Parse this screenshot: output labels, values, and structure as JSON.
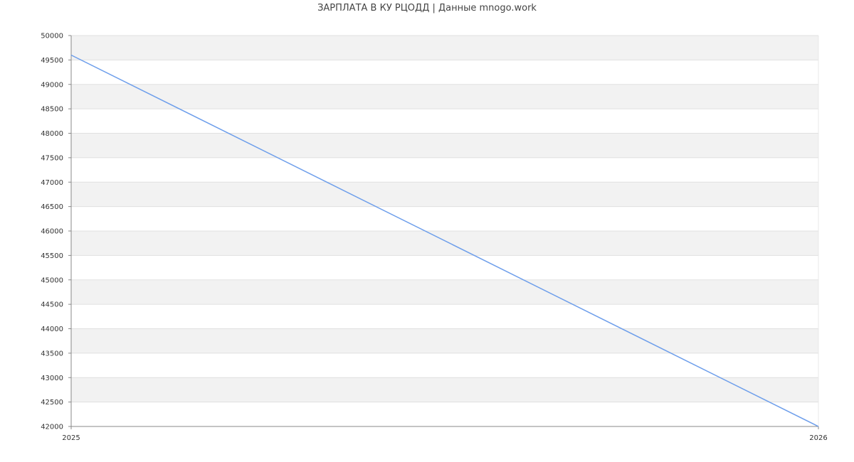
{
  "chart_data": {
    "type": "line",
    "title": "ЗАРПЛАТА В КУ РЦОДД | Данные mnogo.work",
    "xlabel": "",
    "ylabel": "",
    "x": [
      "2025",
      "2026"
    ],
    "series": [
      {
        "values": [
          49600,
          42000
        ],
        "color": "#6d9eeb"
      }
    ],
    "ylim": [
      42000,
      50000
    ],
    "ytick_step": 500,
    "grid": true,
    "band_color": "#f2f2f2",
    "legend": "none"
  }
}
